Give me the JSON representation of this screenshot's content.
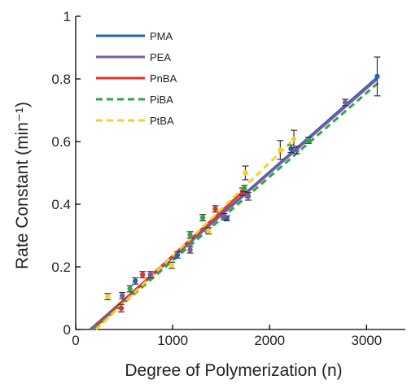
{
  "chart_data": {
    "type": "line",
    "xlabel": "Degree of Polymerization (n)",
    "ylabel": "Rate Constant (min⁻¹)",
    "xlim": [
      0,
      3400
    ],
    "ylim": [
      0,
      1
    ],
    "xticks": [
      0,
      1000,
      2000,
      3000
    ],
    "yticks": [
      0,
      0.2,
      0.4,
      0.6,
      0.8,
      1
    ],
    "xtick_labels": [
      "0",
      "1000",
      "2000",
      "3000"
    ],
    "ytick_labels": [
      "0",
      "0.2",
      "0.4",
      "0.6",
      "0.8",
      "1"
    ],
    "grid": false,
    "legend_position": "top-left",
    "series": [
      {
        "name": "PMA",
        "color": "#2166b0",
        "dash": "solid",
        "fit": [
          [
            150,
            0.0
          ],
          [
            3110,
            0.805
          ]
        ],
        "points": [
          {
            "x": 615,
            "y": 0.155,
            "err": 0.01
          },
          {
            "x": 1050,
            "y": 0.238,
            "err": 0.01
          },
          {
            "x": 1560,
            "y": 0.355,
            "err": 0.008
          },
          {
            "x": 2220,
            "y": 0.577,
            "err": 0.012
          },
          {
            "x": 3110,
            "y": 0.808,
            "err": 0.062
          }
        ]
      },
      {
        "name": "PEA",
        "color": "#7a5aa6",
        "dash": "solid",
        "fit": [
          [
            150,
            0.0
          ],
          [
            3110,
            0.8
          ]
        ],
        "points": [
          {
            "x": 480,
            "y": 0.108,
            "err": 0.01
          },
          {
            "x": 770,
            "y": 0.175,
            "err": 0.01
          },
          {
            "x": 1180,
            "y": 0.254,
            "err": 0.01
          },
          {
            "x": 1530,
            "y": 0.36,
            "err": 0.01
          },
          {
            "x": 1780,
            "y": 0.425,
            "err": 0.012
          },
          {
            "x": 2280,
            "y": 0.573,
            "err": 0.012
          },
          {
            "x": 2780,
            "y": 0.725,
            "err": 0.01
          }
        ]
      },
      {
        "name": "PnBA",
        "color": "#e0342b",
        "dash": "solid",
        "fit": [
          [
            170,
            0.0
          ],
          [
            1740,
            0.445
          ]
        ],
        "points": [
          {
            "x": 470,
            "y": 0.068,
            "err": 0.012
          },
          {
            "x": 690,
            "y": 0.175,
            "err": 0.01
          },
          {
            "x": 1440,
            "y": 0.385,
            "err": 0.01
          },
          {
            "x": 1720,
            "y": 0.44,
            "err": 0.012
          }
        ]
      },
      {
        "name": "PiBA",
        "color": "#2ea64a",
        "dash": "dashed",
        "fit": [
          [
            180,
            0.0
          ],
          [
            3130,
            0.79
          ]
        ],
        "points": [
          {
            "x": 560,
            "y": 0.13,
            "err": 0.01
          },
          {
            "x": 1180,
            "y": 0.302,
            "err": 0.01
          },
          {
            "x": 1310,
            "y": 0.357,
            "err": 0.01
          },
          {
            "x": 1740,
            "y": 0.45,
            "err": 0.01
          },
          {
            "x": 2400,
            "y": 0.604,
            "err": 0.01
          }
        ]
      },
      {
        "name": "PtBA",
        "color": "#f4d12a",
        "dash": "dashed",
        "fit": [
          [
            210,
            0.0
          ],
          [
            2260,
            0.61
          ]
        ],
        "points": [
          {
            "x": 330,
            "y": 0.105,
            "err": 0.01
          },
          {
            "x": 990,
            "y": 0.205,
            "err": 0.01
          },
          {
            "x": 1370,
            "y": 0.315,
            "err": 0.01
          },
          {
            "x": 1750,
            "y": 0.5,
            "err": 0.022
          },
          {
            "x": 2110,
            "y": 0.573,
            "err": 0.03
          },
          {
            "x": 2250,
            "y": 0.608,
            "err": 0.028
          }
        ]
      }
    ]
  }
}
